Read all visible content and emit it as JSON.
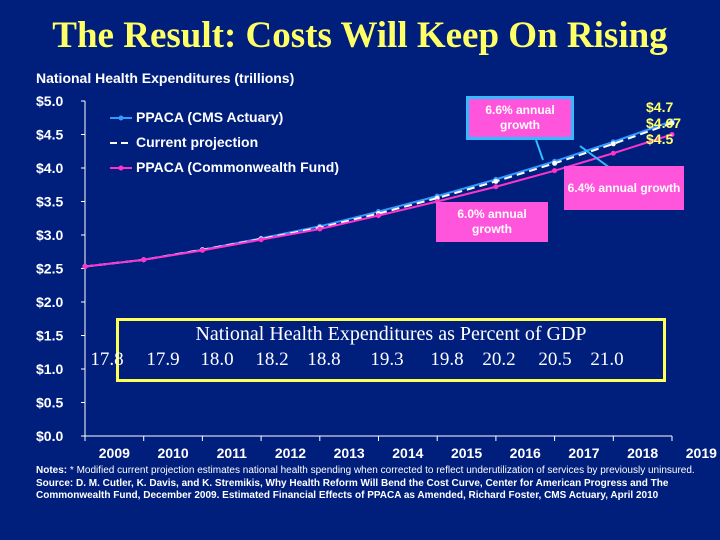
{
  "slide": {
    "title": "The Result: Costs Will Keep On Rising"
  },
  "chart_data": {
    "type": "line",
    "title": "National Health Expenditures (trillions)",
    "x": [
      2009,
      2010,
      2011,
      2012,
      2013,
      2014,
      2015,
      2016,
      2017,
      2018,
      2019
    ],
    "y_ticks": [
      "$0.0",
      "$0.5",
      "$1.0",
      "$1.5",
      "$2.0",
      "$2.5",
      "$3.0",
      "$3.5",
      "$4.0",
      "$4.5",
      "$5.0"
    ],
    "ylim": [
      0,
      5
    ],
    "grid": false,
    "legend_position": "top-left",
    "series": [
      {
        "name": "PPACA (CMS Actuary)",
        "color": "#3399ff",
        "dash": "solid",
        "values": [
          2.53,
          2.63,
          2.78,
          2.95,
          3.13,
          3.35,
          3.58,
          3.83,
          4.1,
          4.39,
          4.7
        ]
      },
      {
        "name": "Current projection",
        "color": "#ffffff",
        "dash": "dashed",
        "values": [
          2.53,
          2.63,
          2.78,
          2.94,
          3.11,
          3.32,
          3.55,
          3.8,
          4.07,
          4.36,
          4.67
        ]
      },
      {
        "name": "PPACA (Commonwealth Fund)",
        "color": "#ff33cc",
        "dash": "solid",
        "values": [
          2.53,
          2.63,
          2.77,
          2.93,
          3.09,
          3.29,
          3.5,
          3.72,
          3.96,
          4.22,
          4.5
        ]
      }
    ],
    "annotations": {
      "callout_top": "6.6% annual growth",
      "callout_right": "6.4% annual growth",
      "callout_mid": "6.0% annual growth",
      "end_labels": [
        "$4.7",
        "$4.67",
        "$4.5"
      ]
    }
  },
  "gdp": {
    "title": "National Health Expenditures as Percent of GDP",
    "values": [
      "17.8",
      "17.9",
      "18.0",
      "18.2",
      "18.8",
      "19.3",
      "19.8",
      "20.2",
      "20.5",
      "21.0"
    ]
  },
  "notes": {
    "note_label": "Notes:",
    "note_text": " * Modified current projection estimates national health spending when corrected to reflect underutilization of services by previously uninsured.",
    "source_text": "Source: D. M. Cutler, K. Davis, and K. Stremikis, Why Health Reform Will Bend the Cost Curve, Center for American Progress and The Commonwealth Fund, December 2009.  Estimated Financial Effects of PPACA as Amended, Richard Foster, CMS Actuary, April 2010"
  },
  "colors": {
    "background": "#001f7d",
    "title": "#ffff66",
    "callout": "#ff55dd",
    "gdp_border": "#ffff55"
  }
}
